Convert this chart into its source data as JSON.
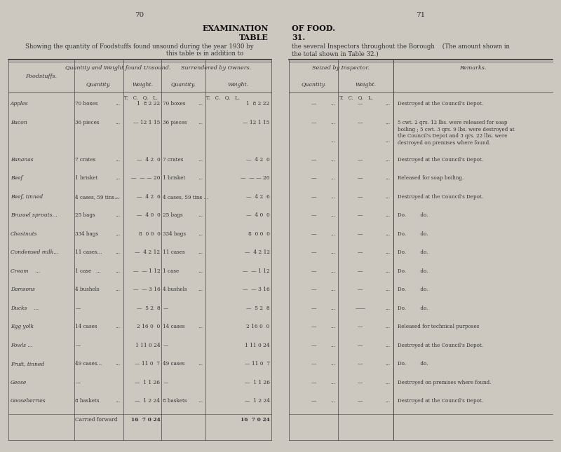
{
  "bg_color": "#ccc8c0",
  "page_color": "#e8e4db",
  "left_page_num": "70",
  "right_page_num": "71",
  "left_header1": "EXAMINATION",
  "left_header2": "TABLE",
  "left_sub1": "Showing the quantity of Foodstuffs found unsound during the year 1930 by",
  "left_sub2": "this table is in addition to",
  "right_header1": "OF FOOD.",
  "right_header2": "31.",
  "right_sub1": "the several Inspectors throughout the Borough    (The amount shown in",
  "right_sub2": "the total shown in Table 32.)",
  "rows": [
    {
      "food": "Apples",
      "qty": "70 boxes",
      "wt": "1  8 2 22",
      "s_qty": "70 boxes",
      "s_wt": "1  8 2 22",
      "si_qty": "—",
      "si_wt": "—",
      "remark": "Destroyed at the Council's Depot."
    },
    {
      "food": "Bacon",
      "qty": "36 pieces",
      "wt": "— 12 1 15",
      "s_qty": "36 pieces",
      "s_wt": "— 12 1 15",
      "si_qty": "—",
      "si_wt": "—",
      "remark": "5 cwt. 2 qrs. 12 lbs. were released for soap\nboiling ; 5 cwt. 3 qrs. 9 lbs. were destroyed at\nthe Council's Depot and 3 qrs. 22 lbs. were\ndestroyed on premises where found."
    },
    {
      "food": "",
      "qty": "",
      "wt": "",
      "s_qty": "",
      "s_wt": "",
      "si_qty": "",
      "si_wt": "",
      "remark": ""
    },
    {
      "food": "Bananas",
      "qty": "7 crates",
      "wt": "—  4 2  0",
      "s_qty": "7 crates",
      "s_wt": "—  4 2  0",
      "si_qty": "—",
      "si_wt": "—",
      "remark": "Destroyed at the Council's Depot."
    },
    {
      "food": "Beef",
      "qty": "1 brisket",
      "wt": "—  — — 20",
      "s_qty": "1 brisket",
      "s_wt": "—  — — 20",
      "si_qty": "—",
      "si_wt": "—",
      "remark": "Released for soap boiling."
    },
    {
      "food": "Beef, tinned",
      "qty": "4 cases, 59 tins...",
      "wt": "—  4 2  6",
      "s_qty": "4 cases, 59 tins ...",
      "s_wt": "—  4 2  6",
      "si_qty": "—",
      "si_wt": "—",
      "remark": "Destroyed at the Council's Depot."
    },
    {
      "food": "Brussel sprouts...",
      "qty": "25 bags",
      "wt": "—  4 0  0",
      "s_qty": "25 bags",
      "s_wt": "—  4 0  0",
      "si_qty": "—",
      "si_wt": "—",
      "remark": "Do.         do."
    },
    {
      "food": "Chestnuts",
      "qty": "334 bags",
      "wt": "8  0 0  0",
      "s_qty": "334 bags",
      "s_wt": "8  0 0  0",
      "si_qty": "—",
      "si_wt": "—",
      "remark": "Do.         do."
    },
    {
      "food": "Condensed milk...",
      "qty": "11 cases...",
      "wt": "—  4 2 12",
      "s_qty": "11 cases",
      "s_wt": "—  4 2 12",
      "si_qty": "—",
      "si_wt": "—",
      "remark": "Do.         do."
    },
    {
      "food": "Cream    ...",
      "qty": "1 case   ...",
      "wt": "—  — 1 12",
      "s_qty": "1 case",
      "s_wt": "—  — 1 12",
      "si_qty": "—",
      "si_wt": "—",
      "remark": "Do.         do."
    },
    {
      "food": "Damsons",
      "qty": "4 bushels",
      "wt": "—  — 3 16",
      "s_qty": "4 bushels",
      "s_wt": "—  — 3 16",
      "si_qty": "—",
      "si_wt": "—",
      "remark": "Do.         do."
    },
    {
      "food": "Ducks    ...",
      "qty": "—",
      "wt": "—  5 2  8",
      "s_qty": "—",
      "s_wt": "—  5 2  8",
      "si_qty": "—",
      "si_wt": "——",
      "remark": "Do.         do."
    },
    {
      "food": "Egg yolk",
      "qty": "14 cases",
      "wt": "2 16 0  0",
      "s_qty": "14 cases",
      "s_wt": "2 16 0  0",
      "si_qty": "—",
      "si_wt": "—",
      "remark": "Released for technical purposes"
    },
    {
      "food": "Fowls ...",
      "qty": "—",
      "wt": "1 11 0 24",
      "s_qty": "—",
      "s_wt": "1 11 0 24",
      "si_qty": "—",
      "si_wt": "—",
      "remark": "Destroyed at the Council's Depot."
    },
    {
      "food": "Fruit, tinned",
      "qty": "49 cases...",
      "wt": "— 11 0  7",
      "s_qty": "49 cases",
      "s_wt": "— 11 0  7",
      "si_qty": "—",
      "si_wt": "—",
      "remark": "Do.         do."
    },
    {
      "food": "Geese",
      "qty": "—",
      "wt": "—  1 1 26",
      "s_qty": "—",
      "s_wt": "—  1 1 26",
      "si_qty": "—",
      "si_wt": "—",
      "remark": "Destroyed on premises where found."
    },
    {
      "food": "Gooseberries",
      "qty": "8 baskets",
      "wt": "—  1 2 24",
      "s_qty": "8 baskets",
      "s_wt": "—  1 2 24",
      "si_qty": "—",
      "si_wt": "—",
      "remark": "Destroyed at the Council's Depot."
    },
    {
      "food": "Carried forward",
      "qty": "",
      "wt": "16  7 0 24",
      "s_qty": "",
      "s_wt": "16  7 0 24",
      "si_qty": "",
      "si_wt": "",
      "remark": ""
    }
  ]
}
